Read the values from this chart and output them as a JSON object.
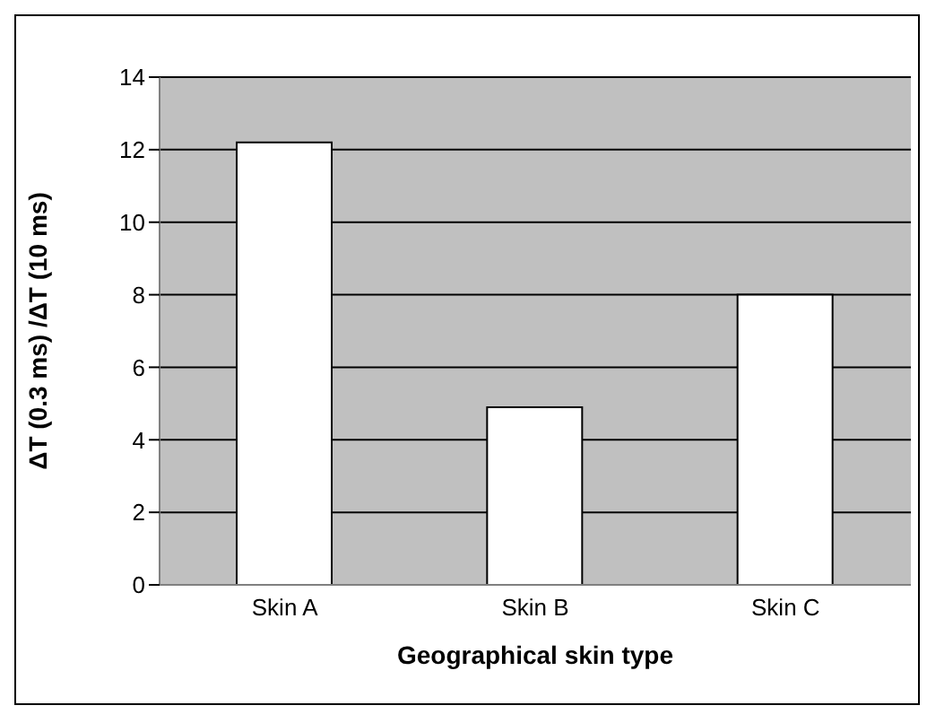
{
  "chart_data": {
    "type": "bar",
    "xlabel": "Geographical skin type",
    "ylabel": "ΔT (0.3 ms) /ΔT (10 ms)",
    "categories": [
      "Skin A",
      "Skin B",
      "Skin C"
    ],
    "values": [
      12.2,
      4.9,
      8.0
    ],
    "color": "#ffffff",
    "ylim": [
      0,
      14
    ],
    "yticks": [
      0,
      2,
      4,
      6,
      8,
      10,
      12,
      14
    ],
    "grid": "y"
  }
}
